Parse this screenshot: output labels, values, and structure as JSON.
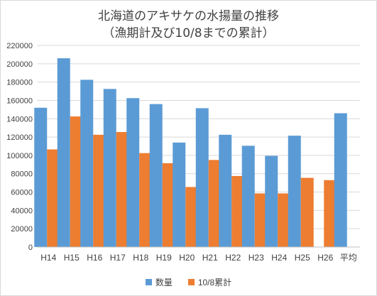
{
  "chart_data": {
    "type": "bar",
    "title": "北海道のアキサケの水揚量の推移",
    "subtitle": "（漁期計及び10/8までの累計）",
    "categories": [
      "H14",
      "H15",
      "H16",
      "H17",
      "H18",
      "H19",
      "H20",
      "H21",
      "H22",
      "H23",
      "H24",
      "H25",
      "H26",
      "平均"
    ],
    "series": [
      {
        "name": "数量",
        "color": "#5b9bd5",
        "values": [
          152000,
          206000,
          182500,
          172500,
          162500,
          156000,
          114000,
          151500,
          122500,
          110500,
          99500,
          121500,
          null,
          146000
        ]
      },
      {
        "name": "10/8累計",
        "color": "#ed7d31",
        "values": [
          106500,
          142500,
          122500,
          125500,
          102500,
          91500,
          65500,
          95000,
          77500,
          58500,
          58500,
          75500,
          73000,
          null
        ]
      }
    ],
    "ylim": [
      0,
      220000
    ],
    "yticks": [
      0,
      20000,
      40000,
      60000,
      80000,
      100000,
      120000,
      140000,
      160000,
      180000,
      200000,
      220000
    ],
    "grid": true,
    "legend_position": "bottom"
  }
}
